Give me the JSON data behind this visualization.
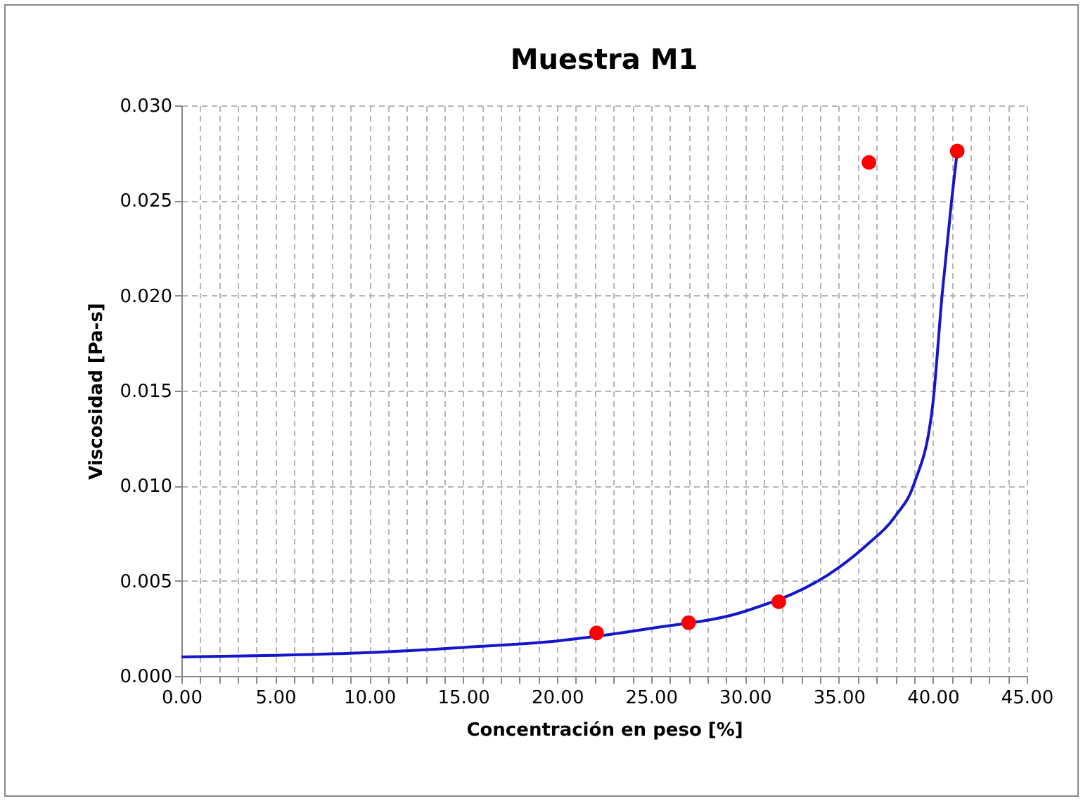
{
  "chart_data": {
    "type": "scatter",
    "title": "Muestra M1",
    "xlabel": "Concentración en peso [%]",
    "ylabel": "Viscosidad [Pa-s]",
    "xlim": [
      0,
      45
    ],
    "ylim": [
      0,
      0.03
    ],
    "grid": true,
    "xticks": [
      {
        "value": 0,
        "label": "0.00"
      },
      {
        "value": 1,
        "label": null
      },
      {
        "value": 2,
        "label": null
      },
      {
        "value": 3,
        "label": null
      },
      {
        "value": 4,
        "label": null
      },
      {
        "value": 5,
        "label": "5.00"
      },
      {
        "value": 6,
        "label": null
      },
      {
        "value": 7,
        "label": null
      },
      {
        "value": 8,
        "label": null
      },
      {
        "value": 9,
        "label": null
      },
      {
        "value": 10,
        "label": "10.00"
      },
      {
        "value": 11,
        "label": null
      },
      {
        "value": 12,
        "label": null
      },
      {
        "value": 13,
        "label": null
      },
      {
        "value": 14,
        "label": null
      },
      {
        "value": 15,
        "label": "15.00"
      },
      {
        "value": 16,
        "label": null
      },
      {
        "value": 17,
        "label": null
      },
      {
        "value": 18,
        "label": null
      },
      {
        "value": 19,
        "label": null
      },
      {
        "value": 20,
        "label": "20.00"
      },
      {
        "value": 21,
        "label": null
      },
      {
        "value": 22,
        "label": null
      },
      {
        "value": 23,
        "label": null
      },
      {
        "value": 24,
        "label": null
      },
      {
        "value": 25,
        "label": "25.00"
      },
      {
        "value": 26,
        "label": null
      },
      {
        "value": 27,
        "label": null
      },
      {
        "value": 28,
        "label": null
      },
      {
        "value": 29,
        "label": null
      },
      {
        "value": 30,
        "label": "30.00"
      },
      {
        "value": 31,
        "label": null
      },
      {
        "value": 32,
        "label": null
      },
      {
        "value": 33,
        "label": null
      },
      {
        "value": 34,
        "label": null
      },
      {
        "value": 35,
        "label": "35.00"
      },
      {
        "value": 36,
        "label": null
      },
      {
        "value": 37,
        "label": null
      },
      {
        "value": 38,
        "label": null
      },
      {
        "value": 39,
        "label": null
      },
      {
        "value": 40,
        "label": "40.00"
      },
      {
        "value": 41,
        "label": null
      },
      {
        "value": 42,
        "label": null
      },
      {
        "value": 43,
        "label": null
      },
      {
        "value": 44,
        "label": null
      },
      {
        "value": 45,
        "label": "45.00"
      }
    ],
    "yticks": [
      {
        "value": 0,
        "label": "0.000"
      },
      {
        "value": 0.005,
        "label": "0.005"
      },
      {
        "value": 0.01,
        "label": "0.010"
      },
      {
        "value": 0.015,
        "label": "0.015"
      },
      {
        "value": 0.02,
        "label": "0.020"
      },
      {
        "value": 0.025,
        "label": "0.025"
      },
      {
        "value": 0.03,
        "label": "0.030"
      }
    ],
    "series": [
      {
        "type": "line",
        "color": "#1515cc",
        "marker": "none",
        "line_style": "solid",
        "x": [
          0,
          5,
          10,
          15,
          20,
          25,
          30,
          35,
          36.5,
          38,
          39,
          40,
          40.5,
          41,
          41.3
        ],
        "values": [
          0.001,
          0.00108,
          0.00123,
          0.0015,
          0.00184,
          0.0025,
          0.0034,
          0.0057,
          0.0069,
          0.0084,
          0.0101,
          0.0143,
          0.0201,
          0.025,
          0.0276
        ]
      },
      {
        "type": "scatter",
        "color": "#ff0000",
        "marker": "circle",
        "x": [
          22.1,
          27.0,
          31.8,
          36.6,
          41.3
        ],
        "values": [
          0.00226,
          0.0028,
          0.0039,
          0.027,
          0.0276
        ]
      }
    ]
  }
}
